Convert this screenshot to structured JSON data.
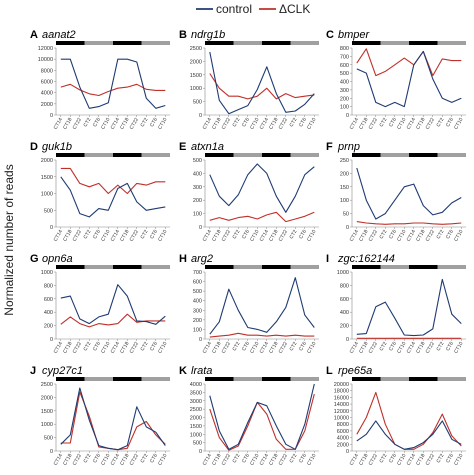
{
  "legend": {
    "control": "control",
    "mutant": "ΔCLK"
  },
  "colors": {
    "control": "#1f3b73",
    "mutant": "#c0302a",
    "dark_bar": "#000000",
    "light_bar": "#a0a0a0",
    "axis": "#888888"
  },
  "y_axis_label": "Normalized number of reads",
  "chart_data": [
    {
      "type": "line",
      "panel": "A",
      "title": "aanat2",
      "categories": [
        "CT14",
        "CT18",
        "CT22",
        "CT2",
        "CT6",
        "CT10",
        "CT14",
        "CT18",
        "CT22",
        "CT2",
        "CT6",
        "CT10"
      ],
      "ylim": [
        0,
        12000
      ],
      "yticks": [
        "0",
        "2000",
        "4000",
        "6000",
        "8000",
        "10000",
        "12000"
      ],
      "series": [
        {
          "name": "control",
          "values": [
            10000,
            10000,
            5000,
            1200,
            1500,
            2200,
            10000,
            10000,
            9500,
            3000,
            1200,
            1700
          ]
        },
        {
          "name": "ΔCLK",
          "values": [
            5000,
            5500,
            4500,
            3800,
            3500,
            4200,
            4800,
            5000,
            5500,
            4600,
            4400,
            4400
          ]
        }
      ]
    },
    {
      "type": "line",
      "panel": "B",
      "title": "ndrg1b",
      "categories": [
        "CT14",
        "CT18",
        "CT22",
        "CT2",
        "CT6",
        "CT10",
        "CT14",
        "CT18",
        "CT22",
        "CT2",
        "CT6",
        "CT10"
      ],
      "ylim": [
        0,
        2500
      ],
      "yticks": [
        "0",
        "500",
        "1000",
        "1500",
        "2000",
        "2500"
      ],
      "series": [
        {
          "name": "control",
          "values": [
            2350,
            550,
            50,
            200,
            350,
            950,
            1800,
            800,
            100,
            150,
            400,
            800
          ]
        },
        {
          "name": "ΔCLK",
          "values": [
            1550,
            1000,
            700,
            700,
            600,
            700,
            1000,
            600,
            800,
            650,
            700,
            750
          ]
        }
      ]
    },
    {
      "type": "line",
      "panel": "C",
      "title": "bmper",
      "categories": [
        "CT14",
        "CT18",
        "CT22",
        "CT2",
        "CT6",
        "CT10",
        "CT14",
        "CT18",
        "CT22",
        "CT2",
        "CT6",
        "CT10"
      ],
      "ylim": [
        0,
        800
      ],
      "yticks": [
        "0",
        "100",
        "200",
        "300",
        "400",
        "500",
        "600",
        "700",
        "800"
      ],
      "series": [
        {
          "name": "control",
          "values": [
            550,
            500,
            150,
            100,
            150,
            100,
            600,
            760,
            430,
            200,
            150,
            200
          ]
        },
        {
          "name": "ΔCLK",
          "values": [
            620,
            790,
            470,
            520,
            600,
            680,
            600,
            760,
            470,
            670,
            650,
            650
          ]
        }
      ]
    },
    {
      "type": "line",
      "panel": "D",
      "title": "guk1b",
      "categories": [
        "CT14",
        "CT18",
        "CT22",
        "CT2",
        "CT6",
        "CT10",
        "CT14",
        "CT18",
        "CT22",
        "CT2",
        "CT6",
        "CT10"
      ],
      "ylim": [
        0,
        2000
      ],
      "yticks": [
        "0",
        "500",
        "1000",
        "1500",
        "2000"
      ],
      "series": [
        {
          "name": "control",
          "values": [
            1500,
            1100,
            400,
            300,
            550,
            500,
            1150,
            1300,
            750,
            500,
            550,
            600
          ]
        },
        {
          "name": "ΔCLK",
          "values": [
            1750,
            1750,
            1300,
            1200,
            1300,
            1000,
            1250,
            1000,
            1300,
            1250,
            1350,
            1350
          ]
        }
      ]
    },
    {
      "type": "line",
      "panel": "E",
      "title": "atxn1a",
      "categories": [
        "CT14",
        "CT18",
        "CT22",
        "CT2",
        "CT6",
        "CT10",
        "CT14",
        "CT18",
        "CT22",
        "CT2",
        "CT6",
        "CT10"
      ],
      "ylim": [
        0,
        500
      ],
      "yticks": [
        "0",
        "100",
        "200",
        "300",
        "400",
        "500"
      ],
      "series": [
        {
          "name": "control",
          "values": [
            390,
            230,
            160,
            240,
            390,
            470,
            400,
            230,
            110,
            230,
            390,
            450
          ]
        },
        {
          "name": "ΔCLK",
          "values": [
            50,
            70,
            50,
            70,
            80,
            60,
            90,
            110,
            40,
            60,
            80,
            110
          ]
        }
      ]
    },
    {
      "type": "line",
      "panel": "F",
      "title": "prnp",
      "categories": [
        "CT14",
        "CT18",
        "CT22",
        "CT2",
        "CT6",
        "CT10",
        "CT14",
        "CT18",
        "CT22",
        "CT2",
        "CT6",
        "CT10"
      ],
      "ylim": [
        0,
        250
      ],
      "yticks": [
        "0",
        "50",
        "100",
        "150",
        "200",
        "250"
      ],
      "series": [
        {
          "name": "control",
          "values": [
            220,
            100,
            30,
            50,
            100,
            150,
            160,
            80,
            45,
            55,
            90,
            110
          ]
        },
        {
          "name": "ΔCLK",
          "values": [
            20,
            15,
            12,
            10,
            12,
            12,
            15,
            15,
            12,
            10,
            12,
            15
          ]
        }
      ]
    },
    {
      "type": "line",
      "panel": "G",
      "title": "opn6a",
      "categories": [
        "CT14",
        "CT18",
        "CT22",
        "CT2",
        "CT6",
        "CT10",
        "CT14",
        "CT18",
        "CT22",
        "CT2",
        "CT6",
        "CT10"
      ],
      "ylim": [
        0,
        1000
      ],
      "yticks": [
        "0",
        "200",
        "400",
        "600",
        "800",
        "1000"
      ],
      "series": [
        {
          "name": "control",
          "values": [
            610,
            640,
            300,
            230,
            330,
            370,
            810,
            640,
            270,
            260,
            220,
            340
          ]
        },
        {
          "name": "ΔCLK",
          "values": [
            220,
            330,
            230,
            180,
            230,
            210,
            230,
            370,
            250,
            270,
            270,
            270
          ]
        }
      ]
    },
    {
      "type": "line",
      "panel": "H",
      "title": "arg2",
      "categories": [
        "CT14",
        "CT18",
        "CT22",
        "CT2",
        "CT6",
        "CT10",
        "CT14",
        "CT18",
        "CT22",
        "CT2",
        "CT6",
        "CT10"
      ],
      "ylim": [
        0,
        700
      ],
      "yticks": [
        "0",
        "100",
        "200",
        "300",
        "400",
        "500",
        "600",
        "700"
      ],
      "series": [
        {
          "name": "control",
          "values": [
            50,
            180,
            520,
            300,
            120,
            100,
            70,
            180,
            330,
            640,
            250,
            120
          ]
        },
        {
          "name": "ΔCLK",
          "values": [
            20,
            30,
            40,
            60,
            40,
            40,
            30,
            40,
            30,
            40,
            30,
            30
          ]
        }
      ]
    },
    {
      "type": "line",
      "panel": "I",
      "title": "zgc:162144",
      "categories": [
        "CT14",
        "CT18",
        "CT22",
        "CT2",
        "CT6",
        "CT10",
        "CT14",
        "CT18",
        "CT22",
        "CT2",
        "CT6",
        "CT10"
      ],
      "ylim": [
        0,
        1000
      ],
      "yticks": [
        "0",
        "200",
        "400",
        "600",
        "800",
        "1000"
      ],
      "series": [
        {
          "name": "control",
          "values": [
            70,
            80,
            480,
            550,
            310,
            60,
            50,
            60,
            150,
            890,
            370,
            230
          ]
        },
        {
          "name": "ΔCLK",
          "values": [
            10,
            10,
            10,
            10,
            10,
            10,
            10,
            10,
            10,
            10,
            10,
            10
          ]
        }
      ]
    },
    {
      "type": "line",
      "panel": "J",
      "title": "cyp27c1",
      "categories": [
        "CT14",
        "CT18",
        "CT22",
        "CT2",
        "CT6",
        "CT10",
        "CT14",
        "CT18",
        "CT22",
        "CT2",
        "CT6",
        "CT10"
      ],
      "ylim": [
        0,
        2500
      ],
      "yticks": [
        "0",
        "500",
        "1000",
        "1500",
        "2000",
        "2500"
      ],
      "series": [
        {
          "name": "control",
          "values": [
            250,
            600,
            2350,
            1150,
            200,
            100,
            50,
            200,
            1650,
            900,
            700,
            200
          ]
        },
        {
          "name": "ΔCLK",
          "values": [
            300,
            300,
            2200,
            1300,
            150,
            100,
            50,
            100,
            900,
            1100,
            600,
            250
          ]
        }
      ]
    },
    {
      "type": "line",
      "panel": "K",
      "title": "lrata",
      "categories": [
        "CT14",
        "CT18",
        "CT22",
        "CT2",
        "CT6",
        "CT10",
        "CT14",
        "CT18",
        "CT22",
        "CT2",
        "CT6",
        "CT10"
      ],
      "ylim": [
        0,
        4000
      ],
      "yticks": [
        "0",
        "500",
        "1000",
        "1500",
        "2000",
        "2500",
        "3000",
        "3500",
        "4000"
      ],
      "series": [
        {
          "name": "control",
          "values": [
            3300,
            1200,
            100,
            400,
            1700,
            2900,
            2700,
            1500,
            400,
            100,
            1600,
            4000
          ]
        },
        {
          "name": "ΔCLK",
          "values": [
            2500,
            800,
            50,
            300,
            1500,
            2900,
            2200,
            700,
            100,
            100,
            1200,
            3400
          ]
        }
      ]
    },
    {
      "type": "line",
      "panel": "L",
      "title": "rpe65a",
      "categories": [
        "CT14",
        "CT18",
        "CT22",
        "CT2",
        "CT6",
        "CT10",
        "CT14",
        "CT18",
        "CT22",
        "CT2",
        "CT6",
        "CT10"
      ],
      "ylim": [
        0,
        20000
      ],
      "yticks": [
        "0",
        "2000",
        "4000",
        "6000",
        "8000",
        "10000",
        "12000",
        "14000",
        "16000",
        "18000",
        "20000"
      ],
      "series": [
        {
          "name": "control",
          "values": [
            3000,
            5000,
            9000,
            5000,
            2000,
            500,
            1000,
            2500,
            5000,
            9000,
            3500,
            2000
          ]
        },
        {
          "name": "ΔCLK",
          "values": [
            5000,
            10000,
            17500,
            8000,
            2000,
            500,
            500,
            2000,
            5500,
            11000,
            4500,
            1500
          ]
        }
      ]
    }
  ]
}
